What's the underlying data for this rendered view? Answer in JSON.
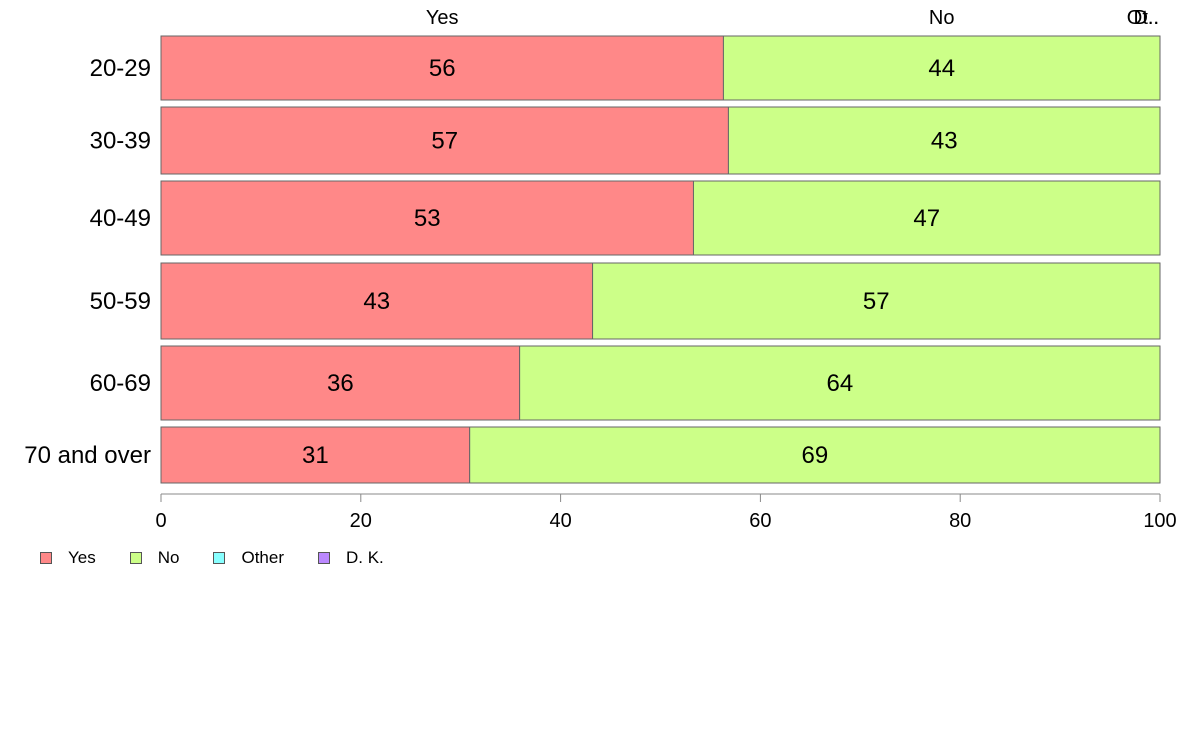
{
  "chart_data": {
    "type": "bar",
    "orientation": "horizontal",
    "stacked": true,
    "categories": [
      "20-29",
      "30-39",
      "40-49",
      "50-59",
      "60-69",
      "70 and over"
    ],
    "series": [
      {
        "name": "Yes",
        "color": "#ff8888",
        "values": [
          56.3,
          56.8,
          53.3,
          43.2,
          35.9,
          30.9
        ]
      },
      {
        "name": "No",
        "color": "#ccff88",
        "values": [
          43.7,
          43.2,
          46.7,
          56.8,
          64.1,
          69.1
        ]
      },
      {
        "name": "Other",
        "color": "#88ffff",
        "values": [
          0,
          0,
          0,
          0,
          0,
          0
        ]
      },
      {
        "name": "D. K.",
        "color": "#bb88ff",
        "values": [
          0,
          0,
          0,
          0,
          0,
          0
        ]
      }
    ],
    "data_labels": [
      [
        "56",
        "44"
      ],
      [
        "57",
        "43"
      ],
      [
        "53",
        "47"
      ],
      [
        "43",
        "57"
      ],
      [
        "36",
        "64"
      ],
      [
        "31",
        "69"
      ]
    ],
    "top_labels": [
      "Yes",
      "No",
      "Ot..",
      "D.."
    ],
    "top_label_positions": [
      28.15,
      78.15,
      100,
      100
    ],
    "xlim": [
      0,
      100
    ],
    "xticks": [
      0,
      20,
      40,
      60,
      80,
      100
    ],
    "xtick_labels": [
      "0",
      "20",
      "40",
      "60",
      "80",
      "100"
    ],
    "legend": {
      "placement": "bottom-left",
      "entries": [
        "Yes",
        "No",
        "Other",
        "D. K."
      ]
    },
    "grid": false,
    "title": "",
    "xlabel": "",
    "ylabel": ""
  }
}
